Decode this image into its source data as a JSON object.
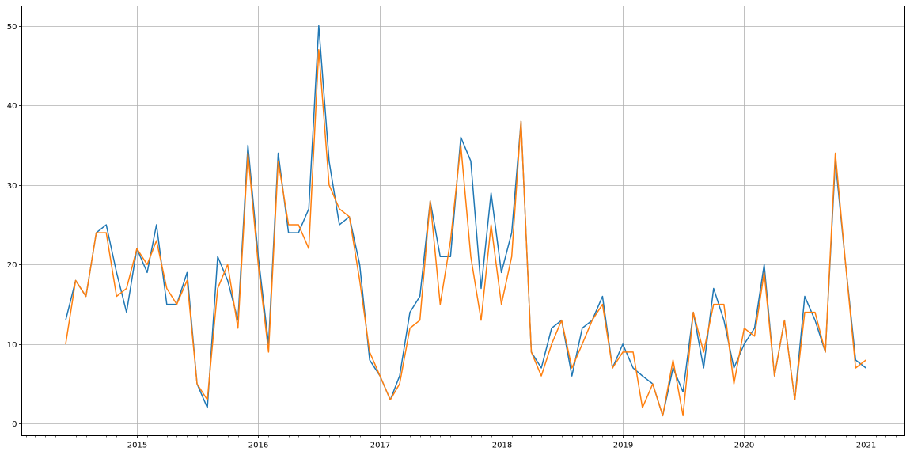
{
  "chart_data": {
    "type": "line",
    "title": "",
    "xlabel": "",
    "ylabel": "",
    "x_range": [
      "2014-01-20",
      "2021-04-28"
    ],
    "ylim": [
      -1.5,
      52.5
    ],
    "grid": true,
    "legend": "none",
    "x_major_ticks": [
      {
        "date": "2015-01-01",
        "label": "2015"
      },
      {
        "date": "2016-01-01",
        "label": "2016"
      },
      {
        "date": "2017-01-01",
        "label": "2017"
      },
      {
        "date": "2018-01-01",
        "label": "2018"
      },
      {
        "date": "2019-01-01",
        "label": "2019"
      },
      {
        "date": "2020-01-01",
        "label": "2020"
      },
      {
        "date": "2021-01-01",
        "label": "2021"
      }
    ],
    "y_ticks": [
      0,
      10,
      20,
      30,
      40,
      50
    ],
    "y_tick_labels": [
      "0",
      "10",
      "20",
      "30",
      "40",
      "50"
    ],
    "x": [
      "2014-06",
      "2014-07",
      "2014-08",
      "2014-09",
      "2014-10",
      "2014-11",
      "2014-12",
      "2015-01",
      "2015-02",
      "2015-03",
      "2015-04",
      "2015-05",
      "2015-06",
      "2015-07",
      "2015-08",
      "2015-09",
      "2015-10",
      "2015-11",
      "2015-12",
      "2016-01",
      "2016-02",
      "2016-03",
      "2016-04",
      "2016-05",
      "2016-06",
      "2016-07",
      "2016-08",
      "2016-09",
      "2016-10",
      "2016-11",
      "2016-12",
      "2017-01",
      "2017-02",
      "2017-03",
      "2017-04",
      "2017-05",
      "2017-06",
      "2017-07",
      "2017-08",
      "2017-09",
      "2017-10",
      "2017-11",
      "2017-12",
      "2018-01",
      "2018-02",
      "2018-03",
      "2018-04",
      "2018-05",
      "2018-06",
      "2018-07",
      "2018-08",
      "2018-09",
      "2018-10",
      "2018-11",
      "2018-12",
      "2019-01",
      "2019-02",
      "2019-03",
      "2019-04",
      "2019-05",
      "2019-06",
      "2019-07",
      "2019-08",
      "2019-09",
      "2019-10",
      "2019-11",
      "2019-12",
      "2020-01",
      "2020-02",
      "2020-03",
      "2020-04",
      "2020-05",
      "2020-06",
      "2020-07",
      "2020-08",
      "2020-09",
      "2020-10",
      "2020-11",
      "2020-12",
      "2021-01"
    ],
    "series": [
      {
        "color": "#1f77b4",
        "values": [
          13,
          18,
          16,
          24,
          25,
          19,
          14,
          22,
          19,
          25,
          15,
          15,
          19,
          5,
          2,
          21,
          18,
          13,
          35,
          21,
          10,
          34,
          24,
          24,
          27,
          50,
          33,
          25,
          26,
          20,
          8,
          6,
          3,
          6,
          14,
          16,
          28,
          21,
          21,
          36,
          33,
          17,
          29,
          19,
          24,
          38,
          9,
          7,
          12,
          13,
          6,
          12,
          13,
          16,
          7,
          10,
          7,
          6,
          5,
          1,
          7,
          4,
          14,
          7,
          17,
          13,
          7,
          10,
          12,
          20,
          6,
          13,
          3,
          16,
          13,
          9,
          33,
          20,
          8,
          7
        ]
      },
      {
        "color": "#ff7f0e",
        "values": [
          10,
          18,
          16,
          24,
          24,
          16,
          17,
          22,
          20,
          23,
          17,
          15,
          18,
          5,
          3,
          17,
          20,
          12,
          34,
          20,
          9,
          33,
          25,
          25,
          22,
          47,
          30,
          27,
          26,
          18,
          9,
          6,
          3,
          5,
          12,
          13,
          28,
          15,
          23,
          35,
          21,
          13,
          25,
          15,
          21,
          38,
          9,
          6,
          10,
          13,
          7,
          10,
          13,
          15,
          7,
          9,
          9,
          2,
          5,
          1,
          8,
          1,
          14,
          9,
          15,
          15,
          5,
          12,
          11,
          19,
          6,
          13,
          3,
          14,
          14,
          9,
          34,
          20,
          7,
          8
        ]
      }
    ]
  }
}
